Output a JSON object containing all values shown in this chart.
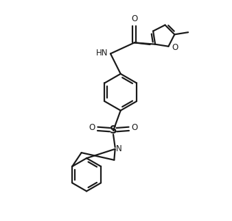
{
  "bg_color": "#ffffff",
  "line_color": "#1a1a1a",
  "line_width": 1.6,
  "font_size": 8.5,
  "figsize": [
    3.38,
    3.23
  ],
  "dpi": 100,
  "xlim": [
    0.0,
    9.5
  ],
  "ylim": [
    -8.5,
    3.5
  ]
}
